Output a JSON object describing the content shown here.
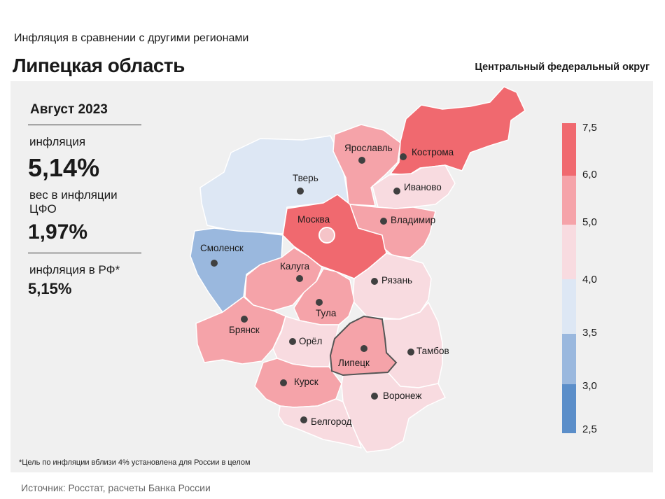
{
  "header": {
    "subtitle": "Инфляция  в сравнении  с другими  регионами",
    "title": "Липецкая область",
    "district": "Центральный федеральный округ"
  },
  "stats": {
    "period": "Август 2023",
    "inflation_label": "инфляция",
    "inflation_value": "5,14%",
    "weight_label": "вес в инфляции  ЦФО",
    "weight_value": "1,97%",
    "rf_label": "инфляция  в РФ*",
    "rf_value": "5,15%"
  },
  "footnote": "*Цель по инфляции вблизи 4% установлена для России в целом",
  "source": "Источник: Росстат, расчеты Банка России",
  "colors": {
    "bin_2_5_3_0": "#5b8ec9",
    "bin_3_0_3_5": "#9ab8de",
    "bin_3_5_4_0": "#dde7f4",
    "bin_4_0_5_0": "#f8dbe0",
    "bin_5_0_6_0": "#f5a3a9",
    "bin_6_0_7_5": "#f0696f"
  },
  "legend": {
    "ticks": [
      "7,5",
      "6,0",
      "5,0",
      "4,0",
      "3,5",
      "3,0",
      "2,5"
    ]
  },
  "regions": {
    "tver": "Тверь",
    "yaroslavl": "Ярославль",
    "kostroma": "Кострома",
    "ivanovo": "Иваново",
    "moskva": "Москва",
    "vladimir": "Владимир",
    "smolensk": "Смоленск",
    "kaluga": "Калуга",
    "ryazan": "Рязань",
    "tula": "Тула",
    "bryansk": "Брянск",
    "orel": "Орёл",
    "lipetsk": "Липецк",
    "tambov": "Тамбов",
    "kursk": "Курск",
    "voronezh": "Воронеж",
    "belgorod": "Белгород"
  }
}
